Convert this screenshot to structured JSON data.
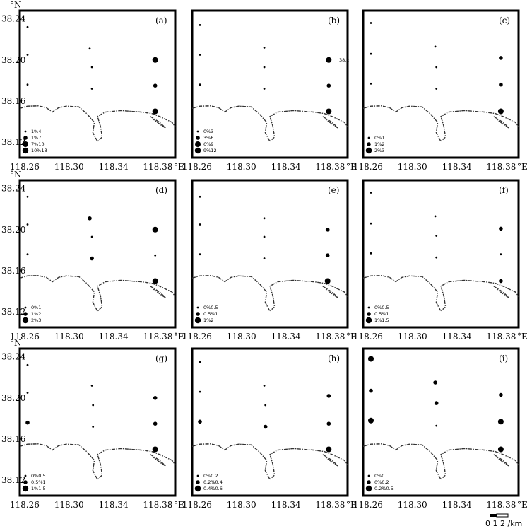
{
  "figure": {
    "lat_unit": "°N",
    "lon_unit": "°E",
    "lat_ticks": [
      "38.24",
      "38.20",
      "38.16",
      "38.12"
    ],
    "lon_ticks": [
      "118.26",
      "118.30",
      "118.34",
      "118.38"
    ],
    "scale_bar": {
      "label": "0  1 2 /km"
    },
    "colors": {
      "frame": "#000000",
      "marker": "#000000",
      "coastline": "#333333"
    }
  },
  "chart_data": [
    {
      "type": "scatter",
      "panel": "(a)",
      "legend": [
        "1%4",
        "1%7",
        "7%10",
        "10%13"
      ],
      "points": [
        {
          "lon": 118.262,
          "lat": 38.232,
          "level": 1
        },
        {
          "lon": 118.262,
          "lat": 38.205,
          "level": 1
        },
        {
          "lon": 118.262,
          "lat": 38.176,
          "level": 1
        },
        {
          "lon": 118.318,
          "lat": 38.211,
          "level": 1
        },
        {
          "lon": 118.32,
          "lat": 38.193,
          "level": 1
        },
        {
          "lon": 118.32,
          "lat": 38.172,
          "level": 1
        },
        {
          "lon": 118.377,
          "lat": 38.2,
          "level": 3
        },
        {
          "lon": 118.377,
          "lat": 38.175,
          "level": 2
        },
        {
          "lon": 118.377,
          "lat": 38.15,
          "level": 3
        }
      ]
    },
    {
      "type": "scatter",
      "panel": "(b)",
      "legend": [
        "0%3",
        "3%6",
        "6%9",
        "9%12"
      ],
      "extra_label": "38.2",
      "points": [
        {
          "lon": 118.262,
          "lat": 38.234,
          "level": 1
        },
        {
          "lon": 118.262,
          "lat": 38.205,
          "level": 1
        },
        {
          "lon": 118.262,
          "lat": 38.176,
          "level": 1
        },
        {
          "lon": 118.32,
          "lat": 38.212,
          "level": 1
        },
        {
          "lon": 118.32,
          "lat": 38.193,
          "level": 1
        },
        {
          "lon": 118.32,
          "lat": 38.172,
          "level": 1
        },
        {
          "lon": 118.378,
          "lat": 38.2,
          "level": 3
        },
        {
          "lon": 118.378,
          "lat": 38.175,
          "level": 2
        },
        {
          "lon": 118.378,
          "lat": 38.15,
          "level": 3
        }
      ]
    },
    {
      "type": "scatter",
      "panel": "(c)",
      "legend": [
        "0%1",
        "1%2",
        "2%3"
      ],
      "points": [
        {
          "lon": 118.262,
          "lat": 38.236,
          "level": 1
        },
        {
          "lon": 118.262,
          "lat": 38.206,
          "level": 1
        },
        {
          "lon": 118.262,
          "lat": 38.177,
          "level": 1
        },
        {
          "lon": 118.32,
          "lat": 38.213,
          "level": 1
        },
        {
          "lon": 118.321,
          "lat": 38.193,
          "level": 1
        },
        {
          "lon": 118.321,
          "lat": 38.172,
          "level": 1
        },
        {
          "lon": 118.379,
          "lat": 38.202,
          "level": 2
        },
        {
          "lon": 118.379,
          "lat": 38.176,
          "level": 2
        },
        {
          "lon": 118.379,
          "lat": 38.15,
          "level": 3
        }
      ]
    },
    {
      "type": "scatter",
      "panel": "(d)",
      "legend": [
        "0%1",
        "1%2",
        "2%3"
      ],
      "points": [
        {
          "lon": 118.262,
          "lat": 38.232,
          "level": 1
        },
        {
          "lon": 118.262,
          "lat": 38.205,
          "level": 1
        },
        {
          "lon": 118.262,
          "lat": 38.176,
          "level": 1
        },
        {
          "lon": 118.318,
          "lat": 38.211,
          "level": 2
        },
        {
          "lon": 118.32,
          "lat": 38.193,
          "level": 1
        },
        {
          "lon": 118.32,
          "lat": 38.172,
          "level": 2
        },
        {
          "lon": 118.377,
          "lat": 38.2,
          "level": 3
        },
        {
          "lon": 118.377,
          "lat": 38.175,
          "level": 1
        },
        {
          "lon": 118.377,
          "lat": 38.15,
          "level": 3
        }
      ]
    },
    {
      "type": "scatter",
      "panel": "(e)",
      "legend": [
        "0%0.5",
        "0.5%1",
        "1%2"
      ],
      "points": [
        {
          "lon": 118.262,
          "lat": 38.232,
          "level": 1
        },
        {
          "lon": 118.262,
          "lat": 38.205,
          "level": 1
        },
        {
          "lon": 118.262,
          "lat": 38.176,
          "level": 1
        },
        {
          "lon": 118.32,
          "lat": 38.211,
          "level": 1
        },
        {
          "lon": 118.32,
          "lat": 38.193,
          "level": 1
        },
        {
          "lon": 118.32,
          "lat": 38.172,
          "level": 1
        },
        {
          "lon": 118.377,
          "lat": 38.2,
          "level": 2
        },
        {
          "lon": 118.377,
          "lat": 38.175,
          "level": 2
        },
        {
          "lon": 118.377,
          "lat": 38.15,
          "level": 3
        }
      ]
    },
    {
      "type": "scatter",
      "panel": "(f)",
      "legend": [
        "0%0.5",
        "0.5%1",
        "1%1.5"
      ],
      "points": [
        {
          "lon": 118.262,
          "lat": 38.236,
          "level": 1
        },
        {
          "lon": 118.262,
          "lat": 38.206,
          "level": 1
        },
        {
          "lon": 118.262,
          "lat": 38.177,
          "level": 1
        },
        {
          "lon": 118.32,
          "lat": 38.213,
          "level": 1
        },
        {
          "lon": 118.321,
          "lat": 38.194,
          "level": 1
        },
        {
          "lon": 118.321,
          "lat": 38.173,
          "level": 1
        },
        {
          "lon": 118.379,
          "lat": 38.201,
          "level": 2
        },
        {
          "lon": 118.379,
          "lat": 38.176,
          "level": 1
        },
        {
          "lon": 118.379,
          "lat": 38.15,
          "level": 2
        }
      ]
    },
    {
      "type": "scatter",
      "panel": "(g)",
      "legend": [
        "0%0.5",
        "0.5%1",
        "1%1.5"
      ],
      "points": [
        {
          "lon": 118.262,
          "lat": 38.232,
          "level": 1
        },
        {
          "lon": 118.262,
          "lat": 38.205,
          "level": 1
        },
        {
          "lon": 118.262,
          "lat": 38.176,
          "level": 2
        },
        {
          "lon": 118.32,
          "lat": 38.212,
          "level": 1
        },
        {
          "lon": 118.321,
          "lat": 38.193,
          "level": 1
        },
        {
          "lon": 118.321,
          "lat": 38.172,
          "level": 1
        },
        {
          "lon": 118.377,
          "lat": 38.2,
          "level": 2
        },
        {
          "lon": 118.377,
          "lat": 38.175,
          "level": 2
        },
        {
          "lon": 118.377,
          "lat": 38.15,
          "level": 3
        }
      ]
    },
    {
      "type": "scatter",
      "panel": "(h)",
      "legend": [
        "0%0.2",
        "0.2%0.4",
        "0.4%0.6"
      ],
      "points": [
        {
          "lon": 118.262,
          "lat": 38.235,
          "level": 1
        },
        {
          "lon": 118.262,
          "lat": 38.206,
          "level": 1
        },
        {
          "lon": 118.262,
          "lat": 38.177,
          "level": 2
        },
        {
          "lon": 118.32,
          "lat": 38.212,
          "level": 1
        },
        {
          "lon": 118.321,
          "lat": 38.193,
          "level": 1
        },
        {
          "lon": 118.321,
          "lat": 38.172,
          "level": 2
        },
        {
          "lon": 118.378,
          "lat": 38.202,
          "level": 2
        },
        {
          "lon": 118.378,
          "lat": 38.175,
          "level": 2
        },
        {
          "lon": 118.378,
          "lat": 38.15,
          "level": 3
        }
      ]
    },
    {
      "type": "scatter",
      "panel": "(i)",
      "legend": [
        "0%0",
        "0%0.2",
        "0.2%0.5"
      ],
      "points": [
        {
          "lon": 118.262,
          "lat": 38.238,
          "level": 3
        },
        {
          "lon": 118.262,
          "lat": 38.207,
          "level": 2
        },
        {
          "lon": 118.262,
          "lat": 38.178,
          "level": 3
        },
        {
          "lon": 118.32,
          "lat": 38.215,
          "level": 2
        },
        {
          "lon": 118.321,
          "lat": 38.195,
          "level": 2
        },
        {
          "lon": 118.321,
          "lat": 38.173,
          "level": 1
        },
        {
          "lon": 118.379,
          "lat": 38.203,
          "level": 2
        },
        {
          "lon": 118.379,
          "lat": 38.177,
          "level": 3
        },
        {
          "lon": 118.379,
          "lat": 38.15,
          "level": 3
        }
      ]
    }
  ]
}
